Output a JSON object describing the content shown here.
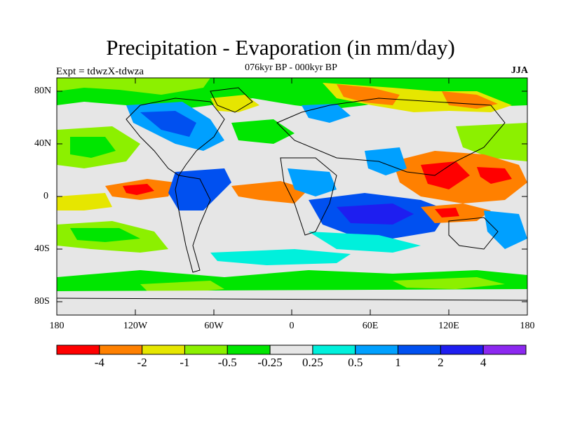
{
  "title": "Precipitation - Evaporation (in mm/day)",
  "subtitle": "076kyr BP - 000kyr BP",
  "experiment_label": "Expt = tdwzX-tdwza",
  "season_label": "JJA",
  "y_axis_labels": [
    "80N",
    "40N",
    "0",
    "40S",
    "80S"
  ],
  "x_axis_labels": [
    "180",
    "120W",
    "60W",
    "0",
    "60E",
    "120E",
    "180"
  ],
  "colorbar": {
    "colors": [
      "#ff0000",
      "#ff8000",
      "#e6e600",
      "#8cf000",
      "#00e600",
      "#e6e6e6",
      "#00f0dc",
      "#00a0ff",
      "#0050f0",
      "#1e1ef0",
      "#8c28f0"
    ],
    "labels": [
      "-4",
      "-2",
      "-1",
      "-0.5",
      "-0.25",
      "0.25",
      "0.5",
      "1",
      "2",
      "4"
    ]
  },
  "background_color": "#e6e6e6"
}
